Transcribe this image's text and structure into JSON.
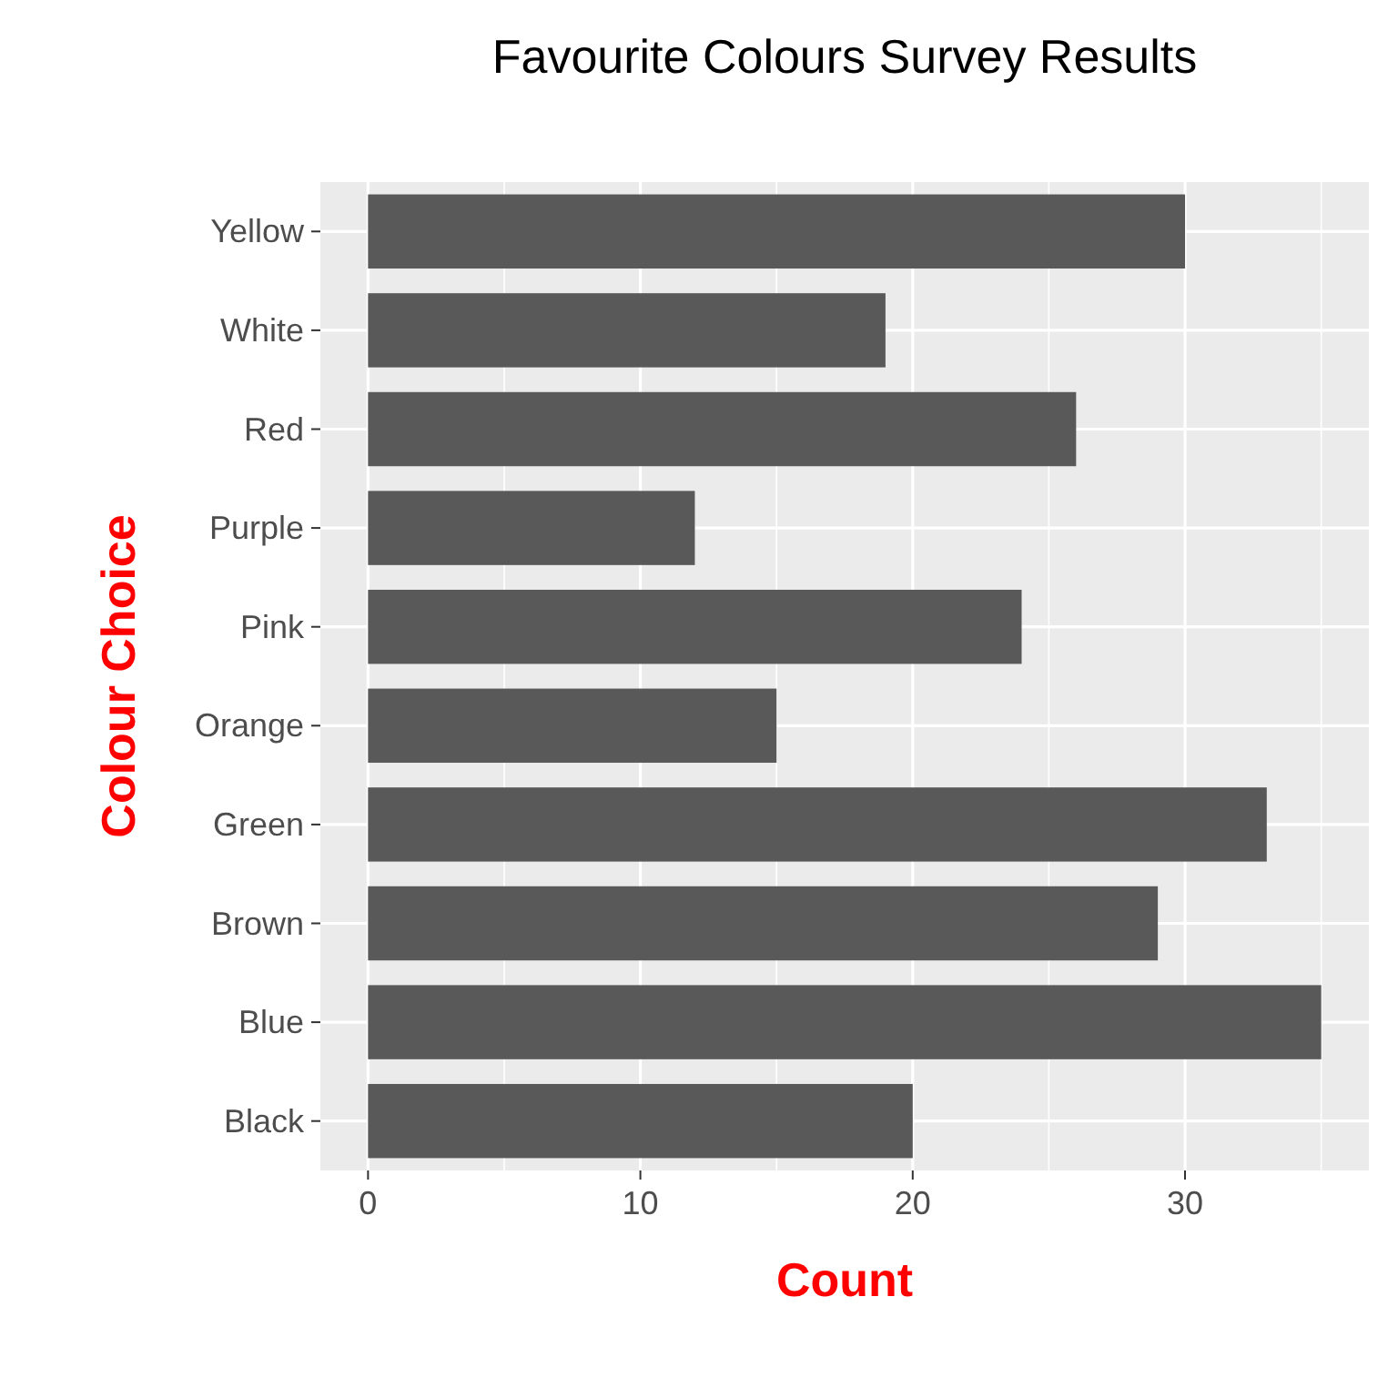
{
  "chart_data": {
    "type": "bar",
    "orientation": "horizontal",
    "title": "Favourite Colours Survey Results",
    "xlabel": "Count",
    "ylabel": "Colour Choice",
    "categories": [
      "Yellow",
      "White",
      "Red",
      "Purple",
      "Pink",
      "Orange",
      "Green",
      "Brown",
      "Blue",
      "Black"
    ],
    "values": [
      30,
      19,
      26,
      12,
      24,
      15,
      33,
      29,
      35,
      20
    ],
    "color": "#595959",
    "xlim": [
      -1.75,
      36.75
    ],
    "xticks": [
      0,
      10,
      20,
      30
    ],
    "grid": true
  }
}
